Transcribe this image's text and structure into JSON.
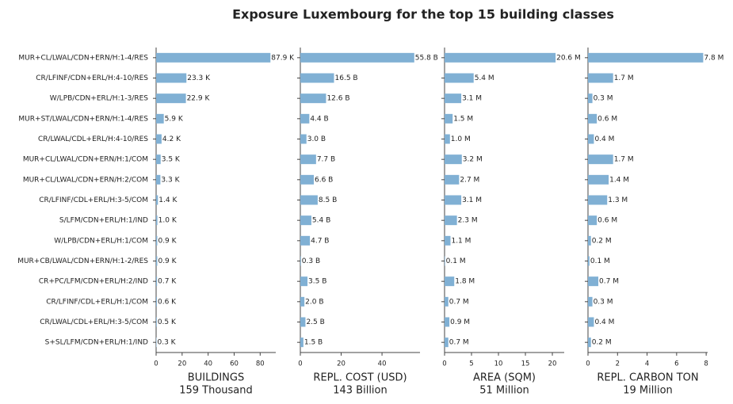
{
  "title": "Exposure Luxembourg for the top 15 building classes",
  "chart_data": [
    {
      "type": "barh",
      "xlabel": "BUILDINGS",
      "total": "159 Thousand",
      "color": "#80b0d4",
      "categories": [
        "MUR+CL/LWAL/CDN+ERN/H:1-4/RES",
        "CR/LFINF/CDN+ERL/H:4-10/RES",
        "W/LPB/CDN+ERL/H:1-3/RES",
        "MUR+ST/LWAL/CDN+ERN/H:1-4/RES",
        "CR/LWAL/CDL+ERL/H:4-10/RES",
        "MUR+CL/LWAL/CDN+ERN/H:1/COM",
        "MUR+CL/LWAL/CDN+ERN/H:2/COM",
        "CR/LFINF/CDL+ERL/H:3-5/COM",
        "S/LFM/CDN+ERL/H:1/IND",
        "W/LPB/CDN+ERL/H:1/COM",
        "MUR+CB/LWAL/CDN+ERN/H:1-2/RES",
        "CR+PC/LFM/CDN+ERL/H:2/IND",
        "CR/LFINF/CDL+ERL/H:1/COM",
        "CR/LWAL/CDL+ERL/H:3-5/COM",
        "S+SL/LFM/CDN+ERL/H:1/IND"
      ],
      "values": [
        87.9,
        23.3,
        22.9,
        5.9,
        4.2,
        3.5,
        3.3,
        1.4,
        1.0,
        0.9,
        0.9,
        0.7,
        0.6,
        0.5,
        0.3
      ],
      "value_labels": [
        "87.9 K",
        "23.3 K",
        "22.9 K",
        "5.9 K",
        "4.2 K",
        "3.5 K",
        "3.3 K",
        "1.4 K",
        "1.0 K",
        "0.9 K",
        "0.9 K",
        "0.7 K",
        "0.6 K",
        "0.5 K",
        "0.3 K"
      ],
      "xlim": [
        0,
        92
      ],
      "xticks": [
        0,
        20,
        40,
        60,
        80
      ]
    },
    {
      "type": "barh",
      "xlabel": "REPL. COST (USD)",
      "total": "143 Billion",
      "color": "#80b0d4",
      "values": [
        55.8,
        16.5,
        12.6,
        4.4,
        3.0,
        7.7,
        6.6,
        8.5,
        5.4,
        4.7,
        0.3,
        3.5,
        2.0,
        2.5,
        1.5
      ],
      "value_labels": [
        "55.8 B",
        "16.5 B",
        "12.6 B",
        "4.4 B",
        "3.0 B",
        "7.7 B",
        "6.6 B",
        "8.5 B",
        "5.4 B",
        "4.7 B",
        "0.3 B",
        "3.5 B",
        "2.0 B",
        "2.5 B",
        "1.5 B"
      ],
      "xlim": [
        0,
        58.6
      ],
      "xticks": [
        0,
        20,
        40
      ]
    },
    {
      "type": "barh",
      "xlabel": "AREA (SQM)",
      "total": "51 Million",
      "color": "#80b0d4",
      "values": [
        20.6,
        5.4,
        3.1,
        1.5,
        1.0,
        3.2,
        2.7,
        3.1,
        2.3,
        1.1,
        0.1,
        1.8,
        0.7,
        0.9,
        0.7
      ],
      "value_labels": [
        "20.6 M",
        "5.4 M",
        "3.1 M",
        "1.5 M",
        "1.0 M",
        "3.2 M",
        "2.7 M",
        "3.1 M",
        "2.3 M",
        "1.1 M",
        "0.1 M",
        "1.8 M",
        "0.7 M",
        "0.9 M",
        "0.7 M"
      ],
      "xlim": [
        0,
        22.2
      ],
      "xticks": [
        0,
        5,
        10,
        15,
        20
      ]
    },
    {
      "type": "barh",
      "xlabel": "REPL. CARBON TON",
      "total": "19 Million",
      "color": "#80b0d4",
      "values": [
        7.8,
        1.7,
        0.3,
        0.6,
        0.4,
        1.7,
        1.4,
        1.3,
        0.6,
        0.2,
        0.1,
        0.7,
        0.3,
        0.4,
        0.2
      ],
      "value_labels": [
        "7.8 M",
        "1.7 M",
        "0.3 M",
        "0.6 M",
        "0.4 M",
        "1.7 M",
        "1.4 M",
        "1.3 M",
        "0.6 M",
        "0.2 M",
        "0.1 M",
        "0.7 M",
        "0.3 M",
        "0.4 M",
        "0.2 M"
      ],
      "xlim": [
        0,
        8.1
      ],
      "xticks": [
        0,
        2,
        4,
        6,
        8
      ]
    }
  ]
}
